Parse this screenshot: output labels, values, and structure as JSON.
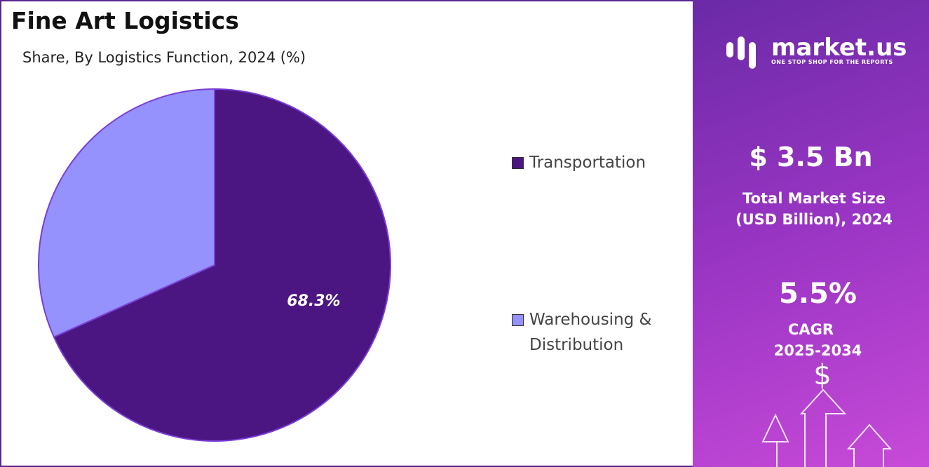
{
  "chart_data": {
    "type": "pie",
    "title": "Fine Art Logistics",
    "subtitle": "Share, By Logistics Function, 2024 (%)",
    "categories": [
      "Transportation",
      "Warehousing & Distribution"
    ],
    "values": [
      68.3,
      31.7
    ],
    "value_labels": [
      "68.3%",
      null
    ],
    "colors": [
      "#4b1681",
      "#9591fd"
    ]
  },
  "side_panel": {
    "brand": "market.us",
    "tagline": "ONE STOP SHOP FOR THE REPORTS",
    "market_size": "$ 3.5 Bn",
    "market_size_label": "Total Market Size (USD Billion), 2024",
    "cagr": "5.5%",
    "cagr_label": "CAGR",
    "cagr_period": "2025-2034"
  }
}
